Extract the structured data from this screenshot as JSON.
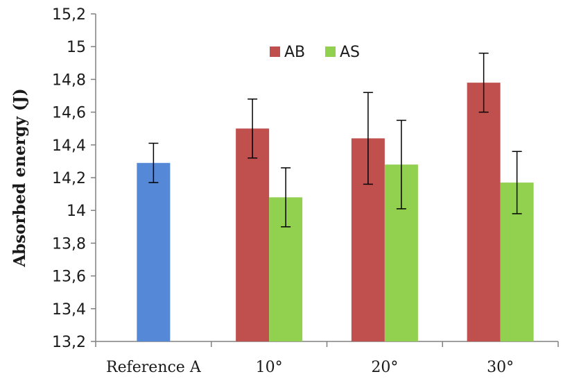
{
  "chart_data": {
    "type": "bar",
    "title": "",
    "xlabel": "",
    "ylabel": "Absorbed energy (J)",
    "ylim": [
      13.2,
      15.2
    ],
    "ytick_step": 0.2,
    "yticks": [
      "13,2",
      "13,4",
      "13,6",
      "13,8",
      "14",
      "14,2",
      "14,4",
      "14,6",
      "14,8",
      "15",
      "15,2"
    ],
    "categories": [
      "Reference A",
      "10°",
      "20°",
      "30°"
    ],
    "grid": false,
    "legend_position": "top-center",
    "legend_series": [
      "AB",
      "AS"
    ],
    "series": [
      {
        "name": "Reference",
        "color": "#5588d6",
        "values": [
          14.29,
          null,
          null,
          null
        ],
        "errors": [
          0.12,
          null,
          null,
          null
        ]
      },
      {
        "name": "AB",
        "color": "#c0504d",
        "values": [
          null,
          14.5,
          14.44,
          14.78
        ],
        "errors": [
          null,
          0.18,
          0.28,
          0.18
        ]
      },
      {
        "name": "AS",
        "color": "#92d050",
        "values": [
          null,
          14.08,
          14.28,
          14.17
        ],
        "errors": [
          null,
          0.18,
          0.27,
          0.19
        ]
      }
    ]
  }
}
